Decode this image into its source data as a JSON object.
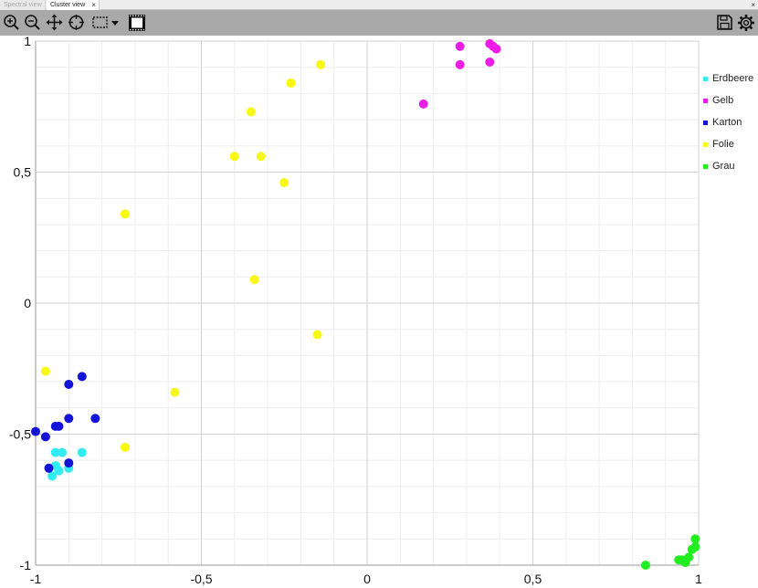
{
  "tabs": [
    {
      "label": "Spectral view",
      "active": false
    },
    {
      "label": "Cluster view",
      "active": true
    }
  ],
  "tab_close_glyph": "×",
  "window_close_glyph": "×",
  "toolbar": {
    "left_tools": [
      "zoom-in-icon",
      "zoom-out-icon",
      "pan-icon",
      "crosshair-icon",
      "rect-select-icon",
      "dropdown-arrow-icon",
      "film-frame-icon"
    ],
    "right_tools": [
      "save-icon",
      "settings-gear-icon"
    ]
  },
  "chart_data": {
    "type": "scatter",
    "xlim": [
      -1,
      1
    ],
    "ylim": [
      -1,
      1
    ],
    "grid": true,
    "legend_position": "right",
    "x_ticks": [
      {
        "value": -1,
        "label": "-1"
      },
      {
        "value": -0.5,
        "label": "-0,5"
      },
      {
        "value": 0,
        "label": "0"
      },
      {
        "value": 0.5,
        "label": "0,5"
      },
      {
        "value": 1,
        "label": "1"
      }
    ],
    "y_ticks": [
      {
        "value": 1,
        "label": "1"
      },
      {
        "value": 0.5,
        "label": "0,5"
      },
      {
        "value": 0,
        "label": "0"
      },
      {
        "value": -0.5,
        "label": "-0,5"
      },
      {
        "value": -1,
        "label": "-1"
      }
    ],
    "series": [
      {
        "name": "Erdbeere",
        "color": "#33ecf2",
        "points": [
          [
            -0.94,
            -0.57
          ],
          [
            -0.92,
            -0.57
          ],
          [
            -0.86,
            -0.57
          ],
          [
            -0.94,
            -0.62
          ],
          [
            -0.9,
            -0.63
          ],
          [
            -0.93,
            -0.64
          ],
          [
            -0.95,
            -0.66
          ]
        ]
      },
      {
        "name": "Gelb",
        "color": "#ee1ce6",
        "points": [
          [
            0.28,
            0.98
          ],
          [
            0.37,
            0.99
          ],
          [
            0.38,
            0.98
          ],
          [
            0.39,
            0.97
          ],
          [
            0.37,
            0.92
          ],
          [
            0.28,
            0.91
          ],
          [
            0.17,
            0.76
          ]
        ]
      },
      {
        "name": "Karton",
        "color": "#1212d8",
        "points": [
          [
            -0.86,
            -0.28
          ],
          [
            -0.9,
            -0.31
          ],
          [
            -0.82,
            -0.44
          ],
          [
            -0.9,
            -0.44
          ],
          [
            -0.93,
            -0.47
          ],
          [
            -0.94,
            -0.47
          ],
          [
            -1.0,
            -0.49
          ],
          [
            -0.97,
            -0.51
          ],
          [
            -0.96,
            -0.63
          ],
          [
            -0.9,
            -0.61
          ]
        ]
      },
      {
        "name": "Folie",
        "color": "#f8f814",
        "points": [
          [
            -0.14,
            0.91
          ],
          [
            -0.23,
            0.84
          ],
          [
            -0.35,
            0.73
          ],
          [
            -0.4,
            0.56
          ],
          [
            -0.32,
            0.56
          ],
          [
            -0.25,
            0.46
          ],
          [
            -0.73,
            0.34
          ],
          [
            -0.34,
            0.09
          ],
          [
            -0.15,
            -0.12
          ],
          [
            -0.97,
            -0.26
          ],
          [
            -0.58,
            -0.34
          ],
          [
            -0.73,
            -0.55
          ]
        ]
      },
      {
        "name": "Grau",
        "color": "#22ee22",
        "points": [
          [
            0.84,
            -1.0
          ],
          [
            0.94,
            -0.98
          ],
          [
            0.96,
            -0.99
          ],
          [
            0.97,
            -0.97
          ],
          [
            0.98,
            -0.94
          ],
          [
            0.99,
            -0.93
          ],
          [
            0.99,
            -0.9
          ],
          [
            0.95,
            -0.98
          ]
        ]
      }
    ]
  }
}
